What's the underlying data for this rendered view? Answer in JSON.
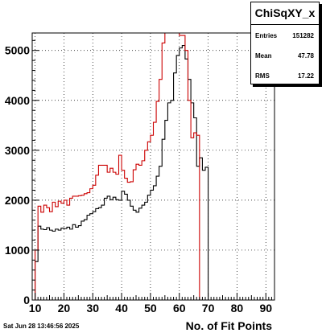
{
  "chart_data": {
    "type": "histogram",
    "title": "",
    "xlabel": "No. of Fit Points",
    "ylabel": "",
    "xlim": [
      9,
      93
    ],
    "ylim": [
      0,
      5350
    ],
    "bin_width": 1,
    "first_bin_low_edge": 9,
    "x_ticks": [
      10,
      20,
      30,
      40,
      50,
      60,
      70,
      80,
      90
    ],
    "y_ticks": [
      0,
      1000,
      2000,
      3000,
      4000,
      5000
    ],
    "grid": true,
    "series": [
      {
        "name": "",
        "color": "#000000",
        "values": [
          0,
          770,
          1480,
          1420,
          1410,
          1450,
          1400,
          1380,
          1420,
          1400,
          1440,
          1430,
          1460,
          1420,
          1510,
          1460,
          1490,
          1580,
          1610,
          1700,
          1730,
          1770,
          1830,
          1850,
          1900,
          2040,
          2080,
          2010,
          2060,
          2010,
          2000,
          2180,
          2120,
          2000,
          1880,
          1800,
          1760,
          1840,
          1900,
          1960,
          2100,
          2200,
          2290,
          2480,
          2680,
          3220,
          3600,
          3950,
          4000,
          4550,
          4900,
          5050,
          5100,
          4830,
          4420,
          3950,
          3650,
          2680,
          2850,
          2600,
          2660,
          0,
          0,
          0,
          0,
          0,
          0,
          0,
          0,
          0,
          0,
          0,
          0,
          0,
          0,
          0,
          0,
          0,
          0,
          0,
          0,
          0,
          0,
          0
        ]
      },
      {
        "name": "",
        "color": "#cc0000",
        "values": [
          0,
          1000,
          1880,
          1760,
          1900,
          1850,
          1770,
          1960,
          1870,
          1980,
          1940,
          2000,
          1900,
          2040,
          2080,
          2080,
          2090,
          2100,
          2130,
          2150,
          2230,
          2300,
          2500,
          2700,
          2700,
          2700,
          2560,
          2640,
          2560,
          2520,
          2900,
          2600,
          2440,
          2360,
          2370,
          2610,
          2720,
          2700,
          2790,
          3000,
          3170,
          3300,
          3560,
          3980,
          4420,
          5150,
          5550,
          5750,
          5600,
          5600,
          5380,
          5300,
          5300,
          5000,
          4000,
          3250,
          3350,
          3300,
          0,
          0,
          0,
          0,
          0,
          0,
          0,
          0,
          0,
          0,
          0,
          0,
          0,
          0,
          0,
          0,
          0,
          0,
          0,
          0,
          0,
          0,
          0,
          0,
          0,
          0
        ]
      }
    ]
  },
  "stats": {
    "title": "ChiSqXY_x",
    "entries_label": "Entries",
    "entries_value": "151282",
    "mean_label": "Mean",
    "mean_value": "47.78",
    "rms_label": "RMS",
    "rms_value": "17.22"
  },
  "footer": {
    "timestamp": "Sat Jun 28 13:46:56 2025"
  }
}
